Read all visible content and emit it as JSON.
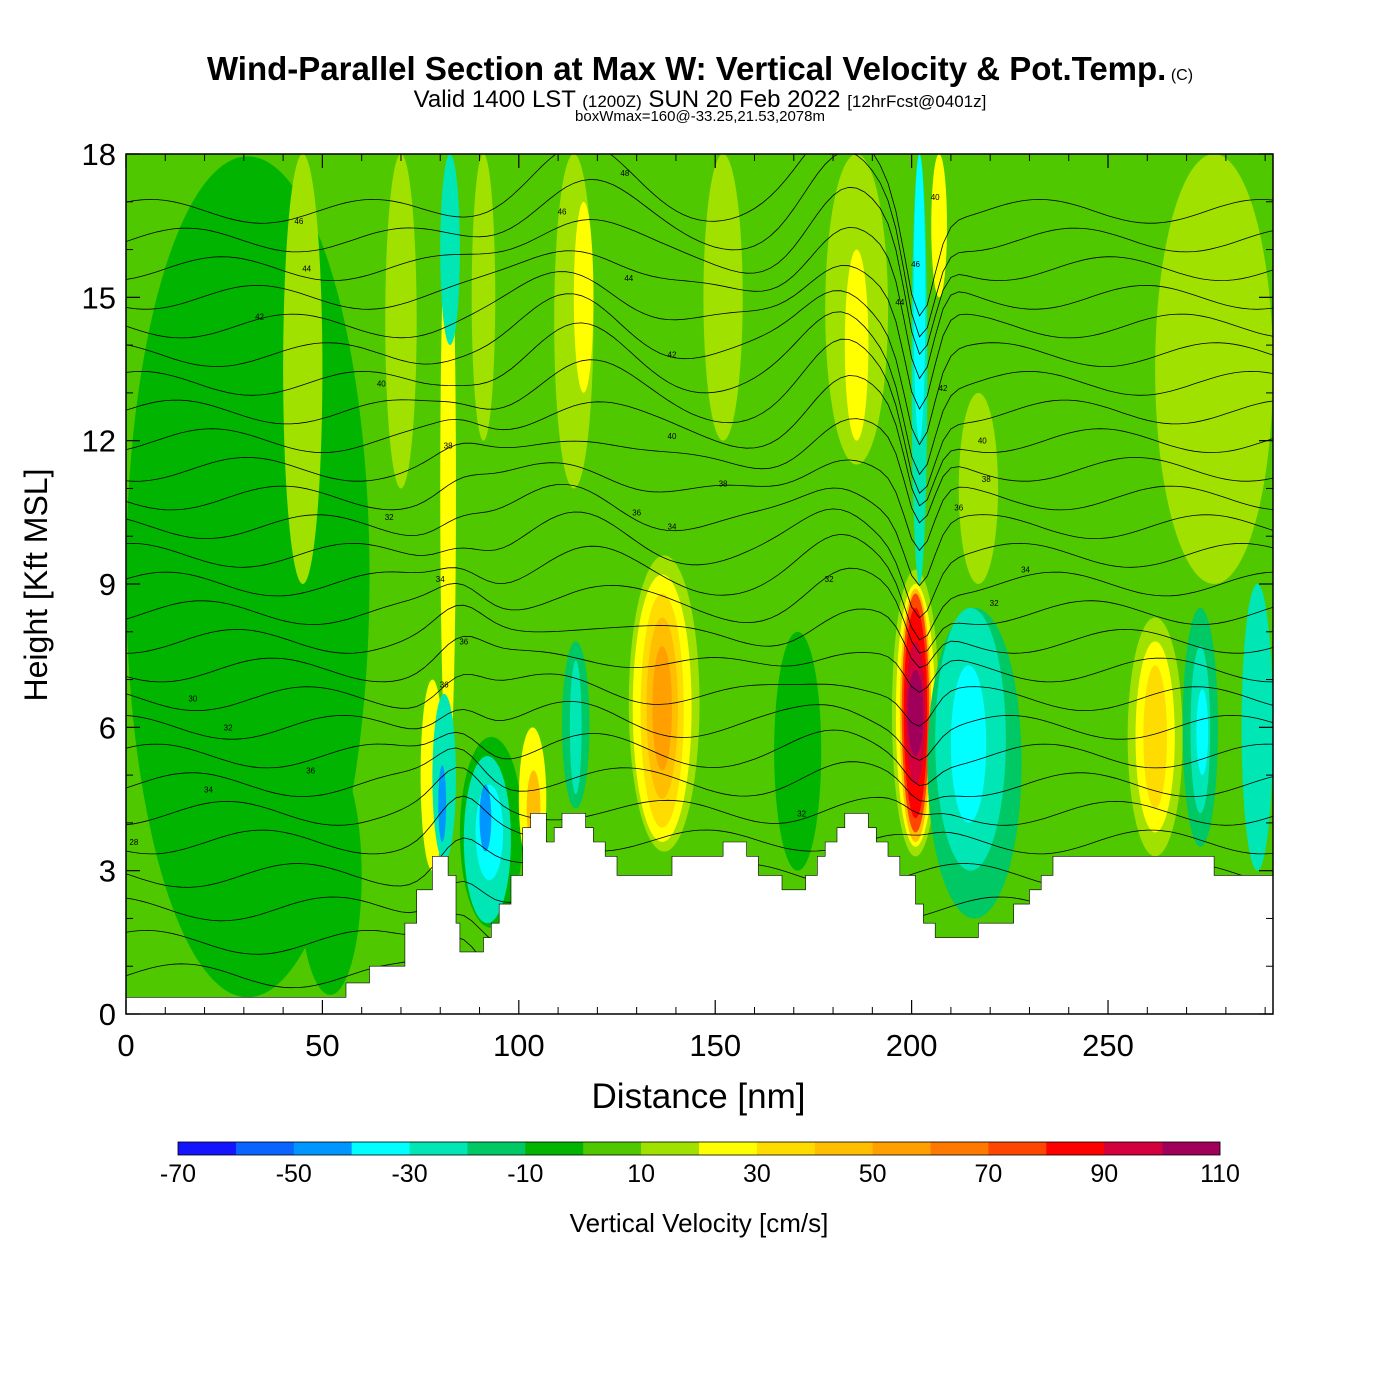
{
  "header": {
    "title": "Wind-Parallel Section at Max W: Vertical Velocity & Pot.Temp.",
    "title_mark": "(C)",
    "valid_main": "Valid 1400 LST",
    "valid_utc": "(1200Z)",
    "valid_date": "SUN 20 Feb 2022",
    "valid_fcst": "[12hrFcst@0401z]",
    "box_info": "boxWmax=160@-33.25,21.53,2078m"
  },
  "chart_data": {
    "type": "heatmap",
    "xlabel": "Distance [nm]",
    "ylabel": "Height [Kft MSL]",
    "xlim": [
      0,
      292
    ],
    "ylim": [
      0,
      18
    ],
    "x_ticks": [
      0,
      50,
      100,
      150,
      200,
      250
    ],
    "y_ticks": [
      0,
      3,
      6,
      9,
      12,
      15,
      18
    ],
    "colorbar": {
      "label": "Vertical Velocity [cm/s]",
      "tick_labels": [
        "-70",
        "-50",
        "-30",
        "-10",
        "10",
        "30",
        "50",
        "70",
        "90",
        "110"
      ],
      "bounds": [
        -70,
        -60,
        -50,
        -40,
        -30,
        -20,
        -10,
        0,
        10,
        20,
        30,
        40,
        50,
        60,
        70,
        80,
        90,
        100,
        110
      ],
      "colors": [
        "#1414ff",
        "#0a64ff",
        "#0096ff",
        "#00ffff",
        "#00e6b4",
        "#00c864",
        "#00b400",
        "#50c800",
        "#a0e100",
        "#ffff00",
        "#ffdc00",
        "#ffbe00",
        "#ffa000",
        "#ff7800",
        "#ff4600",
        "#ff0000",
        "#d2003c",
        "#a0005a"
      ]
    },
    "background_class": "0 to 10 cm/s",
    "terrain_kft": [
      [
        0,
        0.35
      ],
      [
        56,
        0.35
      ],
      [
        56,
        0.65
      ],
      [
        62,
        0.65
      ],
      [
        62,
        1.0
      ],
      [
        71,
        1.0
      ],
      [
        71,
        1.9
      ],
      [
        74,
        1.9
      ],
      [
        74,
        2.6
      ],
      [
        78,
        2.6
      ],
      [
        78,
        3.3
      ],
      [
        82,
        3.3
      ],
      [
        82,
        2.9
      ],
      [
        84,
        2.9
      ],
      [
        84,
        1.9
      ],
      [
        85,
        1.9
      ],
      [
        85,
        1.3
      ],
      [
        91,
        1.3
      ],
      [
        91,
        1.6
      ],
      [
        93,
        1.6
      ],
      [
        93,
        1.9
      ],
      [
        95,
        1.9
      ],
      [
        95,
        2.3
      ],
      [
        98,
        2.3
      ],
      [
        98,
        2.9
      ],
      [
        101,
        2.9
      ],
      [
        101,
        3.9
      ],
      [
        103,
        3.9
      ],
      [
        103,
        4.2
      ],
      [
        107,
        4.2
      ],
      [
        107,
        3.6
      ],
      [
        109,
        3.6
      ],
      [
        109,
        3.9
      ],
      [
        111,
        3.9
      ],
      [
        111,
        4.2
      ],
      [
        117,
        4.2
      ],
      [
        117,
        3.9
      ],
      [
        119,
        3.9
      ],
      [
        119,
        3.6
      ],
      [
        122,
        3.6
      ],
      [
        122,
        3.3
      ],
      [
        125,
        3.3
      ],
      [
        125,
        2.9
      ],
      [
        139,
        2.9
      ],
      [
        139,
        3.3
      ],
      [
        152,
        3.3
      ],
      [
        152,
        3.6
      ],
      [
        158,
        3.6
      ],
      [
        158,
        3.3
      ],
      [
        161,
        3.3
      ],
      [
        161,
        2.9
      ],
      [
        167,
        2.9
      ],
      [
        167,
        2.6
      ],
      [
        173,
        2.6
      ],
      [
        173,
        2.9
      ],
      [
        176,
        2.9
      ],
      [
        176,
        3.3
      ],
      [
        178,
        3.3
      ],
      [
        178,
        3.6
      ],
      [
        181,
        3.6
      ],
      [
        181,
        3.9
      ],
      [
        183,
        3.9
      ],
      [
        183,
        4.2
      ],
      [
        189,
        4.2
      ],
      [
        189,
        3.9
      ],
      [
        191,
        3.9
      ],
      [
        191,
        3.6
      ],
      [
        194,
        3.6
      ],
      [
        194,
        3.3
      ],
      [
        197,
        3.3
      ],
      [
        197,
        2.9
      ],
      [
        201,
        2.9
      ],
      [
        201,
        2.3
      ],
      [
        203,
        2.3
      ],
      [
        203,
        1.9
      ],
      [
        206,
        1.9
      ],
      [
        206,
        1.6
      ],
      [
        217,
        1.6
      ],
      [
        217,
        1.9
      ],
      [
        226,
        1.9
      ],
      [
        226,
        2.3
      ],
      [
        230,
        2.3
      ],
      [
        230,
        2.6
      ],
      [
        233,
        2.6
      ],
      [
        233,
        2.9
      ],
      [
        236,
        2.9
      ],
      [
        236,
        3.3
      ],
      [
        277,
        3.3
      ],
      [
        277,
        2.9
      ],
      [
        292,
        2.9
      ]
    ],
    "w_features": [
      {
        "x": 0,
        "y": 0.35,
        "width": 62,
        "height": 17.6,
        "value": -5
      },
      {
        "x": 15,
        "y": 4,
        "width": 14,
        "height": 12,
        "value": -5
      },
      {
        "x": 44,
        "y": 0.4,
        "width": 16,
        "height": 5,
        "value": -5
      },
      {
        "x": 40,
        "y": 9,
        "width": 10,
        "height": 9,
        "value": 15
      },
      {
        "x": 66,
        "y": 11,
        "width": 8,
        "height": 7,
        "value": 15
      },
      {
        "x": 75,
        "y": 3,
        "width": 6,
        "height": 4,
        "value": 25
      },
      {
        "x": 80,
        "y": 5,
        "width": 4,
        "height": 12,
        "value": 25
      },
      {
        "x": 78,
        "y": 3.2,
        "width": 6,
        "height": 3.5,
        "value": -25
      },
      {
        "x": 79.5,
        "y": 3.6,
        "width": 2,
        "height": 1.6,
        "value": -45
      },
      {
        "x": 80,
        "y": 14,
        "width": 5,
        "height": 4,
        "value": -25
      },
      {
        "x": 85,
        "y": 1.8,
        "width": 16,
        "height": 4,
        "value": -5
      },
      {
        "x": 86,
        "y": 1.9,
        "width": 12,
        "height": 3.5,
        "value": -25
      },
      {
        "x": 89,
        "y": 2.8,
        "width": 7,
        "height": 2,
        "value": -35
      },
      {
        "x": 90,
        "y": 3.4,
        "width": 3,
        "height": 1.4,
        "value": -45
      },
      {
        "x": 100,
        "y": 3,
        "width": 7,
        "height": 3,
        "value": 25
      },
      {
        "x": 102,
        "y": 3.5,
        "width": 3.5,
        "height": 1.6,
        "value": 45
      },
      {
        "x": 88,
        "y": 12,
        "width": 6,
        "height": 6,
        "value": 15
      },
      {
        "x": 111,
        "y": 4.3,
        "width": 7,
        "height": 3.5,
        "value": -15
      },
      {
        "x": 113,
        "y": 4.6,
        "width": 3,
        "height": 2.8,
        "value": -25
      },
      {
        "x": 109,
        "y": 11,
        "width": 10,
        "height": 7,
        "value": 15
      },
      {
        "x": 114,
        "y": 13,
        "width": 5,
        "height": 4,
        "value": 25
      },
      {
        "x": 128,
        "y": 3.4,
        "width": 18,
        "height": 6.2,
        "value": 15
      },
      {
        "x": 129,
        "y": 3.6,
        "width": 15,
        "height": 5.6,
        "value": 25
      },
      {
        "x": 131,
        "y": 3.9,
        "width": 11,
        "height": 4.9,
        "value": 35
      },
      {
        "x": 132.5,
        "y": 4.5,
        "width": 8,
        "height": 3.8,
        "value": 45
      },
      {
        "x": 134,
        "y": 5.1,
        "width": 5,
        "height": 2.6,
        "value": 55
      },
      {
        "x": 147,
        "y": 12,
        "width": 10,
        "height": 6,
        "value": 15
      },
      {
        "x": 165,
        "y": 3,
        "width": 12,
        "height": 5,
        "value": -5
      },
      {
        "x": 178,
        "y": 11.5,
        "width": 16,
        "height": 6.5,
        "value": 15
      },
      {
        "x": 183,
        "y": 12,
        "width": 6,
        "height": 4,
        "value": 25
      },
      {
        "x": 195,
        "y": 3.3,
        "width": 12,
        "height": 6,
        "value": 15
      },
      {
        "x": 196,
        "y": 3.5,
        "width": 10,
        "height": 5.5,
        "value": 25
      },
      {
        "x": 197,
        "y": 3.6,
        "width": 8,
        "height": 5.3,
        "value": 45
      },
      {
        "x": 197.5,
        "y": 3.8,
        "width": 7,
        "height": 5,
        "value": 75
      },
      {
        "x": 198,
        "y": 4.1,
        "width": 6,
        "height": 4.4,
        "value": 85
      },
      {
        "x": 198.5,
        "y": 4.8,
        "width": 5,
        "height": 3,
        "value": 95
      },
      {
        "x": 199,
        "y": 5.4,
        "width": 4,
        "height": 1.8,
        "value": 105
      },
      {
        "x": 200,
        "y": 9,
        "width": 4,
        "height": 9,
        "value": -25
      },
      {
        "x": 200.5,
        "y": 12,
        "width": 3,
        "height": 6,
        "value": -35
      },
      {
        "x": 205,
        "y": 15,
        "width": 4,
        "height": 3,
        "value": 25
      },
      {
        "x": 204,
        "y": 2,
        "width": 24,
        "height": 6.5,
        "value": -15
      },
      {
        "x": 206,
        "y": 3,
        "width": 18,
        "height": 5.5,
        "value": -25
      },
      {
        "x": 210,
        "y": 4,
        "width": 9,
        "height": 3.3,
        "value": -35
      },
      {
        "x": 212,
        "y": 9,
        "width": 10,
        "height": 4,
        "value": 15
      },
      {
        "x": 255,
        "y": 3.3,
        "width": 14,
        "height": 5,
        "value": 15
      },
      {
        "x": 257,
        "y": 3.8,
        "width": 10,
        "height": 4,
        "value": 25
      },
      {
        "x": 259,
        "y": 4.3,
        "width": 6,
        "height": 3,
        "value": 35
      },
      {
        "x": 269,
        "y": 3.5,
        "width": 9,
        "height": 5,
        "value": -15
      },
      {
        "x": 271,
        "y": 4.2,
        "width": 5,
        "height": 3.5,
        "value": -25
      },
      {
        "x": 272.5,
        "y": 5,
        "width": 3,
        "height": 1.8,
        "value": -35
      },
      {
        "x": 284,
        "y": 3,
        "width": 8,
        "height": 6,
        "value": -25
      },
      {
        "x": 262,
        "y": 9,
        "width": 30,
        "height": 9,
        "value": 15
      }
    ],
    "theta_levels": [
      28,
      30,
      30,
      32,
      32,
      34,
      34,
      34,
      36,
      36,
      36,
      38,
      38,
      38,
      40,
      40,
      40,
      42,
      42,
      42,
      44,
      44,
      44,
      46,
      46,
      48,
      48
    ],
    "theta_base_kft": [
      0.8,
      1.5,
      2.2,
      2.9,
      3.6,
      4.2,
      4.8,
      5.4,
      6.0,
      6.6,
      7.2,
      7.8,
      8.4,
      9.0,
      9.6,
      10.2,
      10.8,
      11.4,
      12.0,
      12.6,
      13.2,
      13.8,
      14.4,
      15.0,
      15.6,
      16.2,
      16.8
    ],
    "theta_labels": [
      {
        "text": "28",
        "x": 2,
        "y": 3.6
      },
      {
        "text": "30",
        "x": 17,
        "y": 6.6
      },
      {
        "text": "32",
        "x": 26,
        "y": 6.0
      },
      {
        "text": "34",
        "x": 21,
        "y": 4.7
      },
      {
        "text": "36",
        "x": 47,
        "y": 5.1
      },
      {
        "text": "32",
        "x": 67,
        "y": 10.4
      },
      {
        "text": "34",
        "x": 80,
        "y": 9.1
      },
      {
        "text": "36",
        "x": 81,
        "y": 6.9
      },
      {
        "text": "36",
        "x": 86,
        "y": 7.8
      },
      {
        "text": "38",
        "x": 82,
        "y": 11.9
      },
      {
        "text": "40",
        "x": 65,
        "y": 13.2
      },
      {
        "text": "42",
        "x": 34,
        "y": 14.6
      },
      {
        "text": "44",
        "x": 46,
        "y": 15.6
      },
      {
        "text": "46",
        "x": 44,
        "y": 16.6
      },
      {
        "text": "48",
        "x": 127,
        "y": 17.6
      },
      {
        "text": "46",
        "x": 111,
        "y": 16.8
      },
      {
        "text": "44",
        "x": 128,
        "y": 15.4
      },
      {
        "text": "42",
        "x": 139,
        "y": 13.8
      },
      {
        "text": "40",
        "x": 139,
        "y": 12.1
      },
      {
        "text": "38",
        "x": 152,
        "y": 11.1
      },
      {
        "text": "36",
        "x": 130,
        "y": 10.5
      },
      {
        "text": "34",
        "x": 139,
        "y": 10.2
      },
      {
        "text": "32",
        "x": 179,
        "y": 9.1
      },
      {
        "text": "32",
        "x": 172,
        "y": 4.2
      },
      {
        "text": "40",
        "x": 206,
        "y": 17.1
      },
      {
        "text": "46",
        "x": 201,
        "y": 15.7
      },
      {
        "text": "44",
        "x": 197,
        "y": 14.9
      },
      {
        "text": "42",
        "x": 208,
        "y": 13.1
      },
      {
        "text": "40",
        "x": 218,
        "y": 12.0
      },
      {
        "text": "38",
        "x": 219,
        "y": 11.2
      },
      {
        "text": "36",
        "x": 212,
        "y": 10.6
      },
      {
        "text": "34",
        "x": 229,
        "y": 9.3
      },
      {
        "text": "32",
        "x": 221,
        "y": 8.6
      }
    ]
  }
}
